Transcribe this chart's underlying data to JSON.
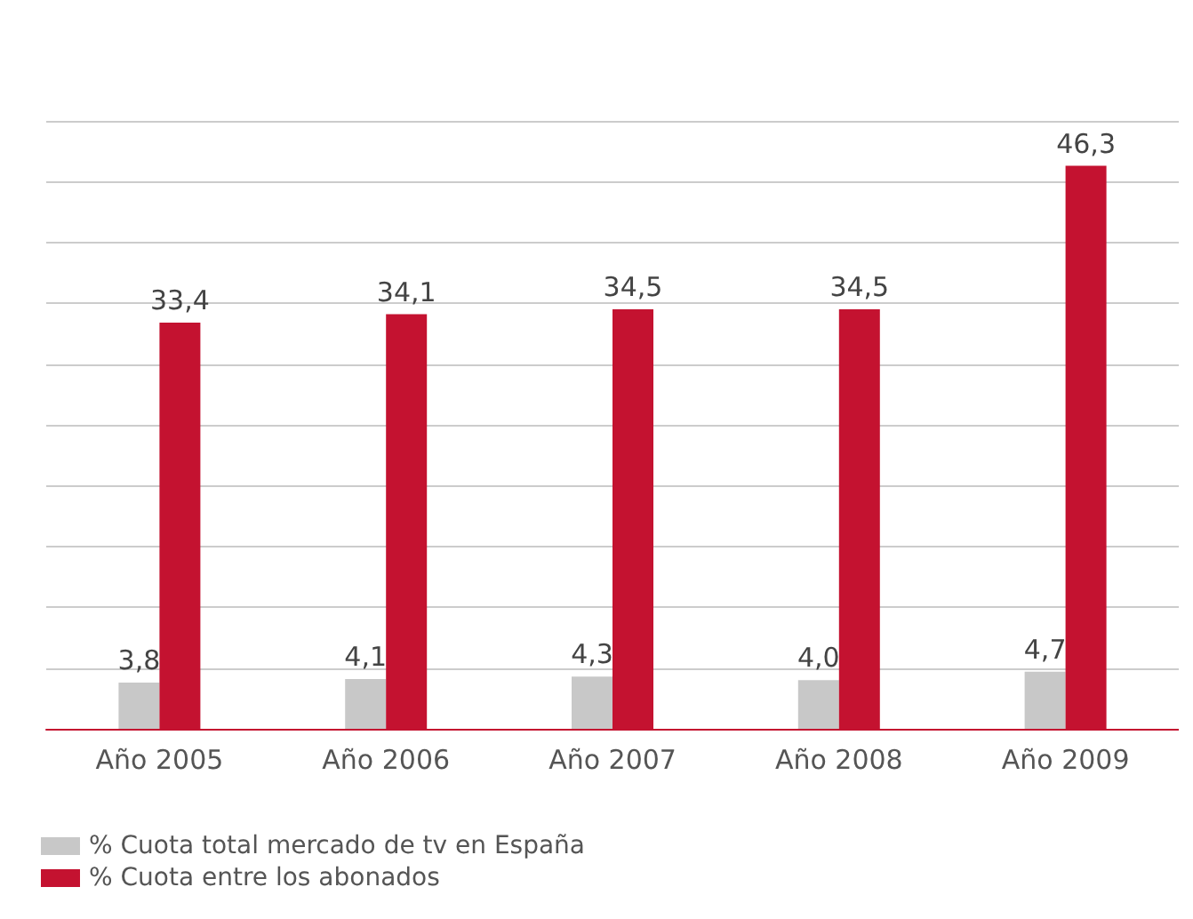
{
  "chart_data": {
    "type": "bar",
    "categories": [
      "Año 2005",
      "Año 2006",
      "Año 2007",
      "Año 2008",
      "Año 2009"
    ],
    "series": [
      {
        "name": "% Cuota total mercado de tv en España",
        "color": "#c8c8c8",
        "values": [
          3.8,
          4.1,
          4.3,
          4.0,
          4.7
        ],
        "value_labels": [
          "3,8",
          "4,1",
          "4,3",
          "4,0",
          "4,7"
        ]
      },
      {
        "name": "% Cuota entre los abonados",
        "color": "#c41230",
        "values": [
          33.4,
          34.1,
          34.5,
          34.5,
          46.3
        ],
        "value_labels": [
          "33,4",
          "34,1",
          "34,5",
          "34,5",
          "46,3"
        ]
      }
    ],
    "ylim": [
      0,
      50
    ],
    "yticks": [
      0,
      5,
      10,
      15,
      20,
      25,
      30,
      35,
      40,
      45,
      50
    ],
    "tick_labels": "x",
    "grid": "y",
    "legend": "bottom left"
  }
}
